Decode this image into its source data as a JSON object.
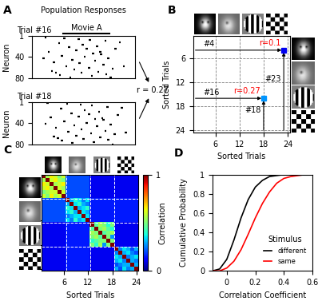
{
  "chart_data": [
    {
      "type": "raster",
      "label": "A",
      "title": "Population Responses",
      "stimulus_label": "Movie A",
      "stimulus_span": [
        30,
        75
      ],
      "ylabel": "Neuron",
      "xlim": [
        0,
        100
      ],
      "ylim": [
        80,
        1
      ],
      "yticks": [
        1,
        40,
        80
      ],
      "tick_labels": "y",
      "correlation_label": "r = 0.27",
      "trials": [
        {
          "name": "Trial #16",
          "spikes": [
            [
              12,
              3
            ],
            [
              30,
              5
            ],
            [
              55,
              8
            ],
            [
              70,
              10
            ],
            [
              25,
              14
            ],
            [
              48,
              17
            ],
            [
              62,
              20
            ],
            [
              35,
              22
            ],
            [
              80,
              25
            ],
            [
              42,
              28
            ],
            [
              15,
              30
            ],
            [
              58,
              33
            ],
            [
              66,
              35
            ],
            [
              28,
              38
            ],
            [
              50,
              40
            ],
            [
              73,
              43
            ],
            [
              38,
              45
            ],
            [
              60,
              47
            ],
            [
              20,
              50
            ],
            [
              45,
              52
            ],
            [
              68,
              55
            ],
            [
              32,
              57
            ],
            [
              54,
              60
            ],
            [
              77,
              62
            ],
            [
              40,
              64
            ],
            [
              18,
              66
            ],
            [
              63,
              68
            ],
            [
              47,
              70
            ],
            [
              71,
              72
            ],
            [
              26,
              74
            ],
            [
              57,
              76
            ],
            [
              36,
              78
            ],
            [
              84,
              12
            ],
            [
              10,
              42
            ],
            [
              88,
              58
            ],
            [
              52,
              24
            ],
            [
              44,
              6
            ],
            [
              65,
              31
            ],
            [
              22,
              69
            ],
            [
              75,
              79
            ]
          ]
        },
        {
          "name": "Trial #18",
          "spikes": [
            [
              14,
              2
            ],
            [
              33,
              4
            ],
            [
              57,
              7
            ],
            [
              72,
              9
            ],
            [
              27,
              13
            ],
            [
              50,
              16
            ],
            [
              64,
              19
            ],
            [
              37,
              21
            ],
            [
              82,
              24
            ],
            [
              44,
              27
            ],
            [
              17,
              29
            ],
            [
              60,
              32
            ],
            [
              68,
              34
            ],
            [
              30,
              37
            ],
            [
              52,
              39
            ],
            [
              75,
              42
            ],
            [
              40,
              44
            ],
            [
              62,
              46
            ],
            [
              22,
              49
            ],
            [
              47,
              51
            ],
            [
              70,
              54
            ],
            [
              34,
              56
            ],
            [
              56,
              59
            ],
            [
              79,
              61
            ],
            [
              42,
              63
            ],
            [
              20,
              65
            ],
            [
              65,
              67
            ],
            [
              49,
              69
            ],
            [
              73,
              71
            ],
            [
              28,
              73
            ],
            [
              59,
              75
            ],
            [
              38,
              77
            ],
            [
              86,
              11
            ],
            [
              12,
              41
            ],
            [
              90,
              57
            ],
            [
              54,
              23
            ],
            [
              46,
              5
            ],
            [
              67,
              30
            ],
            [
              24,
              68
            ],
            [
              77,
              80
            ]
          ]
        }
      ]
    },
    {
      "type": "matrix_annotation",
      "label": "B",
      "xlabel": "Sorted Trials",
      "ylabel": "Sorted Trials",
      "xlim": [
        0.5,
        24.5
      ],
      "ylim": [
        24.5,
        0.5
      ],
      "xticks": [
        6,
        12,
        18,
        24
      ],
      "yticks": [
        6,
        12,
        18,
        24
      ],
      "grid": true,
      "points": [
        {
          "row": 4,
          "col": 23,
          "r": 0.1,
          "row_label": "#4",
          "col_label": "#23",
          "r_label": "r=0.1"
        },
        {
          "row": 16,
          "col": 18,
          "r": 0.27,
          "row_label": "#16",
          "col_label": "#18",
          "r_label": "r=0.27"
        }
      ]
    },
    {
      "type": "heatmap",
      "label": "C",
      "xlabel": "Sorted Trials",
      "xlim": [
        0.5,
        24.5
      ],
      "ylim": [
        24.5,
        0.5
      ],
      "xticks": [
        6,
        12,
        18,
        24
      ],
      "yticks": [
        6,
        12,
        18,
        24
      ],
      "tick_labels": "x",
      "colorbar_label": "Correlation",
      "colorbar_range": [
        0,
        1
      ],
      "colorbar_ticks": [
        0,
        1
      ],
      "cells": [
        [
          1,
          0.55,
          0.65,
          0.6,
          0.5,
          0.6,
          0.2,
          0.2,
          0.2,
          0.2,
          0.2,
          0.2,
          0.1,
          0.1,
          0.1,
          0.1,
          0.1,
          0.1,
          0.1,
          0.1,
          0.1,
          0.1,
          0.1,
          0.1
        ],
        [
          0.55,
          1,
          0.6,
          0.65,
          0.55,
          0.5,
          0.2,
          0.2,
          0.2,
          0.2,
          0.2,
          0.2,
          0.1,
          0.1,
          0.1,
          0.1,
          0.1,
          0.1,
          0.1,
          0.1,
          0.1,
          0.1,
          0.1,
          0.1
        ],
        [
          0.65,
          0.6,
          1,
          0.55,
          0.6,
          0.65,
          0.2,
          0.2,
          0.2,
          0.2,
          0.2,
          0.2,
          0.1,
          0.1,
          0.1,
          0.1,
          0.1,
          0.1,
          0.1,
          0.1,
          0.1,
          0.1,
          0.1,
          0.1
        ],
        [
          0.6,
          0.65,
          0.55,
          1,
          0.6,
          0.55,
          0.2,
          0.2,
          0.2,
          0.2,
          0.2,
          0.2,
          0.1,
          0.1,
          0.1,
          0.1,
          0.1,
          0.1,
          0.1,
          0.1,
          0.1,
          0.1,
          0.1,
          0.1
        ],
        [
          0.5,
          0.55,
          0.6,
          0.6,
          1,
          0.6,
          0.2,
          0.2,
          0.2,
          0.2,
          0.2,
          0.2,
          0.1,
          0.1,
          0.1,
          0.1,
          0.1,
          0.1,
          0.1,
          0.1,
          0.1,
          0.1,
          0.1,
          0.1
        ],
        [
          0.6,
          0.5,
          0.65,
          0.55,
          0.6,
          1,
          0.2,
          0.2,
          0.2,
          0.2,
          0.2,
          0.2,
          0.1,
          0.1,
          0.1,
          0.1,
          0.1,
          0.1,
          0.1,
          0.1,
          0.1,
          0.1,
          0.1,
          0.1
        ],
        [
          0.2,
          0.2,
          0.2,
          0.2,
          0.2,
          0.2,
          1,
          0.3,
          0.4,
          0.35,
          0.25,
          0.35,
          0.15,
          0.15,
          0.15,
          0.15,
          0.15,
          0.15,
          0.15,
          0.15,
          0.15,
          0.15,
          0.15,
          0.15
        ],
        [
          0.2,
          0.2,
          0.2,
          0.2,
          0.2,
          0.2,
          0.3,
          1,
          0.35,
          0.4,
          0.3,
          0.25,
          0.15,
          0.15,
          0.15,
          0.15,
          0.15,
          0.15,
          0.15,
          0.15,
          0.15,
          0.15,
          0.15,
          0.15
        ],
        [
          0.2,
          0.2,
          0.2,
          0.2,
          0.2,
          0.2,
          0.4,
          0.35,
          1,
          0.3,
          0.35,
          0.4,
          0.15,
          0.15,
          0.15,
          0.15,
          0.15,
          0.15,
          0.15,
          0.15,
          0.15,
          0.15,
          0.15,
          0.15
        ],
        [
          0.2,
          0.2,
          0.2,
          0.2,
          0.2,
          0.2,
          0.35,
          0.4,
          0.3,
          1,
          0.35,
          0.3,
          0.15,
          0.15,
          0.15,
          0.15,
          0.15,
          0.15,
          0.15,
          0.15,
          0.15,
          0.15,
          0.15,
          0.15
        ],
        [
          0.2,
          0.2,
          0.2,
          0.2,
          0.2,
          0.2,
          0.25,
          0.3,
          0.35,
          0.35,
          1,
          0.35,
          0.15,
          0.15,
          0.15,
          0.15,
          0.15,
          0.15,
          0.15,
          0.15,
          0.15,
          0.15,
          0.15,
          0.15
        ],
        [
          0.2,
          0.2,
          0.2,
          0.2,
          0.2,
          0.2,
          0.35,
          0.25,
          0.4,
          0.3,
          0.35,
          1,
          0.15,
          0.15,
          0.15,
          0.15,
          0.15,
          0.15,
          0.15,
          0.15,
          0.15,
          0.15,
          0.15,
          0.15
        ],
        [
          0.1,
          0.1,
          0.1,
          0.1,
          0.1,
          0.1,
          0.15,
          0.15,
          0.15,
          0.15,
          0.15,
          0.15,
          1,
          0.45,
          0.55,
          0.5,
          0.4,
          0.5,
          0.1,
          0.1,
          0.1,
          0.1,
          0.1,
          0.1
        ],
        [
          0.1,
          0.1,
          0.1,
          0.1,
          0.1,
          0.1,
          0.15,
          0.15,
          0.15,
          0.15,
          0.15,
          0.15,
          0.45,
          1,
          0.5,
          0.55,
          0.45,
          0.4,
          0.1,
          0.1,
          0.1,
          0.1,
          0.1,
          0.1
        ],
        [
          0.1,
          0.1,
          0.1,
          0.1,
          0.1,
          0.1,
          0.15,
          0.15,
          0.15,
          0.15,
          0.15,
          0.15,
          0.55,
          0.5,
          1,
          0.45,
          0.5,
          0.55,
          0.1,
          0.1,
          0.1,
          0.1,
          0.1,
          0.1
        ],
        [
          0.1,
          0.1,
          0.1,
          0.1,
          0.1,
          0.1,
          0.15,
          0.15,
          0.15,
          0.15,
          0.15,
          0.15,
          0.5,
          0.55,
          0.45,
          1,
          0.5,
          0.27,
          0.1,
          0.1,
          0.1,
          0.1,
          0.1,
          0.1
        ],
        [
          0.1,
          0.1,
          0.1,
          0.1,
          0.1,
          0.1,
          0.15,
          0.15,
          0.15,
          0.15,
          0.15,
          0.15,
          0.4,
          0.45,
          0.5,
          0.5,
          1,
          0.5,
          0.1,
          0.1,
          0.1,
          0.1,
          0.1,
          0.1
        ],
        [
          0.1,
          0.1,
          0.1,
          0.1,
          0.1,
          0.1,
          0.15,
          0.15,
          0.15,
          0.15,
          0.15,
          0.15,
          0.5,
          0.4,
          0.55,
          0.27,
          0.5,
          1,
          0.1,
          0.1,
          0.1,
          0.1,
          0.1,
          0.1
        ],
        [
          0.1,
          0.1,
          0.1,
          0.1,
          0.1,
          0.1,
          0.15,
          0.15,
          0.15,
          0.15,
          0.15,
          0.15,
          0.1,
          0.1,
          0.1,
          0.1,
          0.1,
          0.1,
          1,
          0.25,
          0.35,
          0.3,
          0.2,
          0.3
        ],
        [
          0.1,
          0.1,
          0.1,
          0.1,
          0.1,
          0.1,
          0.15,
          0.15,
          0.15,
          0.15,
          0.15,
          0.15,
          0.1,
          0.1,
          0.1,
          0.1,
          0.1,
          0.1,
          0.25,
          1,
          0.3,
          0.35,
          0.25,
          0.2
        ],
        [
          0.1,
          0.1,
          0.1,
          0.1,
          0.1,
          0.1,
          0.15,
          0.15,
          0.15,
          0.15,
          0.15,
          0.15,
          0.1,
          0.1,
          0.1,
          0.1,
          0.1,
          0.1,
          0.35,
          0.3,
          1,
          0.25,
          0.3,
          0.35
        ],
        [
          0.1,
          0.1,
          0.1,
          0.1,
          0.1,
          0.1,
          0.15,
          0.15,
          0.15,
          0.15,
          0.15,
          0.15,
          0.1,
          0.1,
          0.1,
          0.1,
          0.1,
          0.1,
          0.3,
          0.35,
          0.25,
          1,
          0.3,
          0.25
        ],
        [
          0.1,
          0.1,
          0.1,
          0.1,
          0.1,
          0.1,
          0.15,
          0.15,
          0.15,
          0.15,
          0.15,
          0.15,
          0.1,
          0.1,
          0.1,
          0.1,
          0.1,
          0.1,
          0.2,
          0.25,
          0.3,
          0.3,
          1,
          0.3
        ],
        [
          0.1,
          0.1,
          0.1,
          0.1,
          0.1,
          0.1,
          0.15,
          0.15,
          0.15,
          0.15,
          0.15,
          0.15,
          0.1,
          0.1,
          0.1,
          0.1,
          0.1,
          0.1,
          0.3,
          0.2,
          0.35,
          0.25,
          0.3,
          1
        ]
      ]
    },
    {
      "type": "line",
      "label": "D",
      "xlabel": "Correlation Coefficient",
      "ylabel": "Cumulative Probability",
      "xlim": [
        -0.1,
        0.6
      ],
      "ylim": [
        0,
        1
      ],
      "xticks": [
        0,
        0.2,
        0.4,
        0.6
      ],
      "yticks": [
        0,
        0.2,
        0.4,
        0.6,
        0.8,
        1
      ],
      "legend": "lower right",
      "legend_title": "Stimulus",
      "x": [
        -0.1,
        -0.05,
        0,
        0.05,
        0.1,
        0.15,
        0.2,
        0.25,
        0.3,
        0.35,
        0.4,
        0.45,
        0.5,
        0.55
      ],
      "series": [
        {
          "name": "different",
          "color": "#000000",
          "values": [
            0,
            0.02,
            0.12,
            0.32,
            0.55,
            0.74,
            0.87,
            0.94,
            0.98,
            0.99,
            1,
            1,
            1,
            1
          ]
        },
        {
          "name": "same",
          "color": "#ff0000",
          "values": [
            0,
            0,
            0.03,
            0.1,
            0.22,
            0.38,
            0.55,
            0.7,
            0.82,
            0.91,
            0.96,
            0.98,
            0.99,
            1
          ]
        }
      ]
    }
  ]
}
